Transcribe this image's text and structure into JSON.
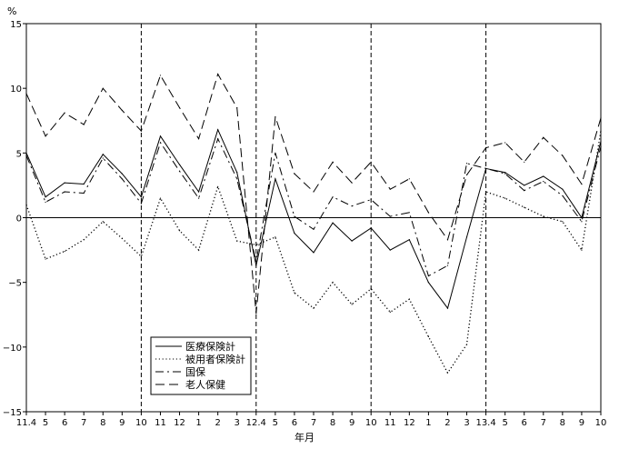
{
  "chart_data": {
    "type": "line",
    "unit_label": "%",
    "xlabel": "年月",
    "ylabel": "",
    "ylim": [
      -15,
      15
    ],
    "yticks": [
      15,
      10,
      5,
      0,
      -5,
      -10,
      -15
    ],
    "x": [
      "11.4",
      "5",
      "6",
      "7",
      "8",
      "9",
      "10",
      "11",
      "12",
      "1",
      "2",
      "3",
      "12.4",
      "5",
      "6",
      "7",
      "8",
      "9",
      "10",
      "11",
      "12",
      "1",
      "2",
      "3",
      "13.4",
      "5",
      "6",
      "7",
      "8",
      "9",
      "10"
    ],
    "dividers_after_index": [
      6,
      12,
      18,
      24,
      30
    ],
    "legend_position": "bottom-left",
    "series": [
      {
        "name": "医療保険計",
        "style": "solid",
        "values": [
          5.0,
          1.6,
          2.7,
          2.6,
          4.9,
          3.4,
          1.6,
          6.3,
          4.1,
          2.0,
          6.8,
          3.5,
          -3.7,
          3.0,
          -1.2,
          -2.7,
          -0.4,
          -1.8,
          -0.8,
          -2.5,
          -1.7,
          -5.0,
          -7.0,
          -1.5,
          3.8,
          3.5,
          2.5,
          3.2,
          2.2,
          0.0,
          5.9
        ]
      },
      {
        "name": "被用者保険計",
        "style": "dotted",
        "values": [
          1.0,
          -3.2,
          -2.6,
          -1.7,
          -0.3,
          -1.6,
          -3.0,
          1.5,
          -1.0,
          -2.5,
          2.4,
          -1.8,
          -2.1,
          -1.5,
          -5.8,
          -7.0,
          -5.0,
          -6.7,
          -5.5,
          -7.3,
          -6.3,
          -9.2,
          -12.0,
          -9.8,
          2.0,
          1.5,
          0.8,
          0.1,
          -0.3,
          -2.5,
          6.7
        ]
      },
      {
        "name": "国保",
        "style": "dash-dot",
        "values": [
          4.8,
          1.2,
          2.0,
          1.9,
          4.6,
          3.0,
          1.1,
          5.8,
          3.6,
          1.5,
          6.1,
          3.0,
          -3.4,
          5.0,
          0.1,
          -0.9,
          1.6,
          0.9,
          1.4,
          0.1,
          0.4,
          -4.5,
          -3.7,
          4.2,
          3.8,
          3.4,
          2.1,
          2.8,
          1.7,
          -0.3,
          5.5
        ]
      },
      {
        "name": "老人保健",
        "style": "dashed",
        "values": [
          9.6,
          6.3,
          8.1,
          7.2,
          10.0,
          8.3,
          6.7,
          11.0,
          8.5,
          6.1,
          11.1,
          8.5,
          -7.4,
          7.8,
          3.4,
          2.0,
          4.3,
          2.7,
          4.3,
          2.2,
          3.0,
          0.4,
          -1.7,
          3.3,
          5.4,
          5.8,
          4.3,
          6.2,
          4.8,
          2.6,
          7.7
        ]
      }
    ]
  }
}
